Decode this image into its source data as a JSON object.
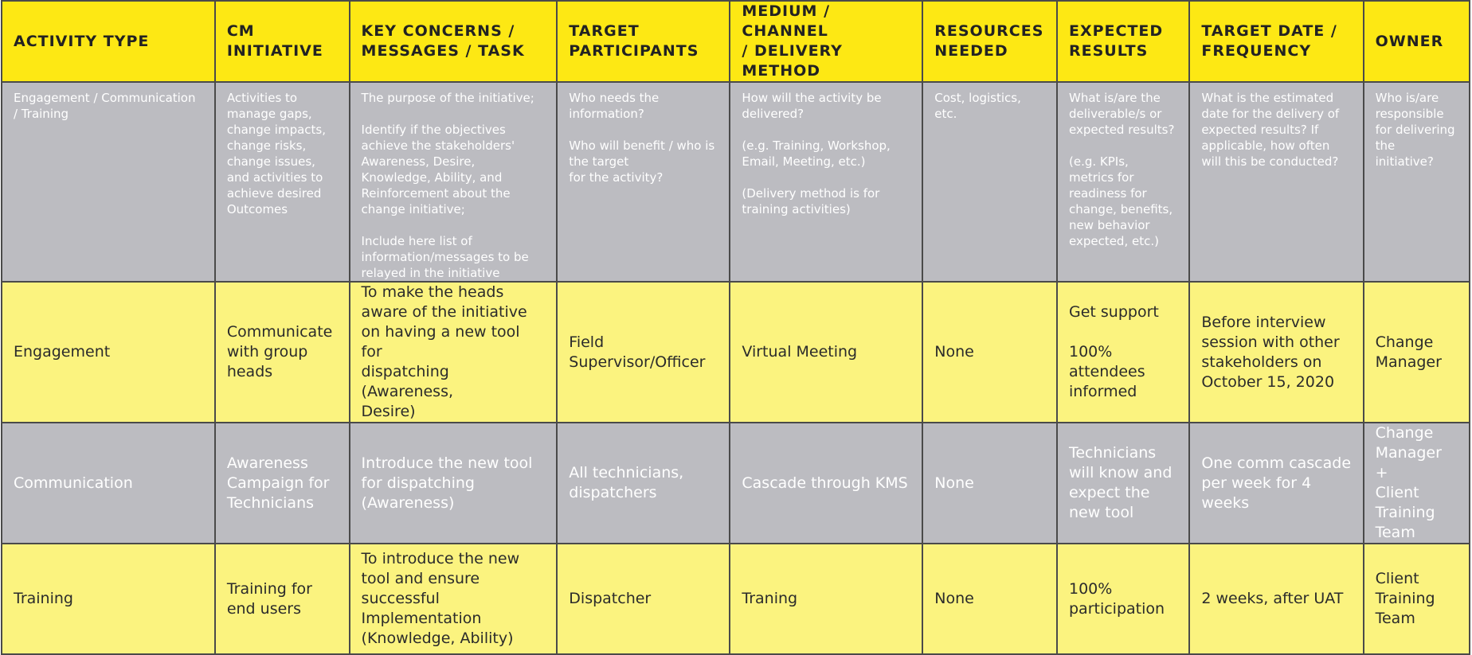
{
  "headers": [
    "ACTIVITY TYPE",
    "CM\nINITIATIVE",
    "KEY CONCERNS /\nMESSAGES / TASK",
    "TARGET\nPARTICIPANTS",
    "MEDIUM / CHANNEL\n/ DELIVERY METHOD",
    "RESOURCES\nNEEDED",
    "EXPECTED\nRESULTS",
    "TARGET DATE /\nFREQUENCY",
    "OWNER"
  ],
  "guide": [
    "Engagement / Communication\n/ Training",
    "Activities to\nmanage gaps,\nchange impacts,\nchange risks,\nchange issues,\nand activities to\nachieve desired\nOutcomes",
    "The purpose of the initiative;\n\nIdentify if the objectives\nachieve the stakeholders'\nAwareness, Desire,\nKnowledge, Ability, and\nReinforcement about the\nchange initiative;\n\nInclude here list of\ninformation/messages to be\nrelayed in the initiative",
    "Who needs the\ninformation?\n\nWho will benefit / who is\nthe target\nfor the activity?",
    "How will the activity be\ndelivered?\n\n(e.g. Training, Workshop,\nEmail, Meeting, etc.)\n\n(Delivery method is for\ntraining activities)",
    "Cost, logistics,\netc.",
    "What is/are the\ndeliverable/s or\nexpected results?\n\n(e.g. KPIs,\nmetrics for\nreadiness for\nchange, benefits,\nnew behavior\nexpected, etc.)",
    "What is the estimated\ndate for the delivery of\nexpected results? If\napplicable, how often\nwill this be conducted?",
    "Who is/are\nresponsible\nfor delivering\nthe\ninitiative?"
  ],
  "rows": [
    {
      "style": "yellow",
      "cells": [
        "Engagement",
        "Communicate\nwith group\nheads",
        "To make the heads\naware of the initiative\non having a new tool for\ndispatching (Awareness,\nDesire)",
        "Field\nSupervisor/Officer",
        "Virtual Meeting",
        "None",
        "Get support\n\n100%\nattendees\ninformed",
        "Before interview\nsession with other\nstakeholders on\nOctober 15, 2020",
        "Change\nManager"
      ]
    },
    {
      "style": "gray",
      "cells": [
        "Communication",
        "Awareness\nCampaign for\nTechnicians",
        "Introduce the new tool\nfor dispatching\n(Awareness)",
        "All technicians,\ndispatchers",
        "Cascade through KMS",
        "None",
        "Technicians\nwill know and\nexpect the\nnew tool",
        "One comm cascade\nper week for 4\nweeks",
        "Change\nManager +\nClient\nTraining\nTeam"
      ]
    },
    {
      "style": "yellow",
      "cells": [
        "Training",
        "Training for\nend users",
        "To introduce the new\ntool and ensure\nsuccessful\nImplementation\n(Knowledge, Ability)",
        "Dispatcher",
        "Traning",
        "None",
        "100%\nparticipation",
        "2 weeks, after UAT",
        "Client\nTraining\nTeam"
      ]
    }
  ]
}
